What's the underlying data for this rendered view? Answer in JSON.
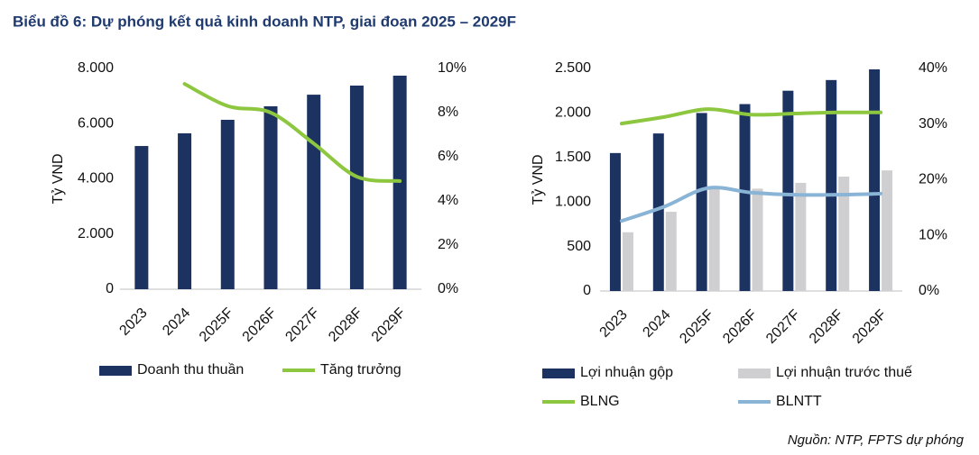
{
  "title": "Biểu đồ 6: Dự phóng kết quả kinh doanh NTP, giai đoạn 2025 – 2029F",
  "source": "Nguồn: NTP, FPTS dự phóng",
  "chart_data": [
    {
      "type": "bar",
      "y_label": "Tỷ VND",
      "categories": [
        "2023",
        "2024",
        "2025F",
        "2026F",
        "2027F",
        "2028F",
        "2029F"
      ],
      "ylim": [
        0,
        8000
      ],
      "yticks": [
        0,
        {
          "value": 2000,
          "label": "2.000"
        },
        {
          "value": 4000,
          "label": "4.000"
        },
        {
          "value": 6000,
          "label": "6.000"
        },
        {
          "value": 8000,
          "label": "8.000"
        }
      ],
      "y2lim": [
        0,
        10
      ],
      "y2ticks": [
        {
          "value": 0,
          "label": "0%"
        },
        {
          "value": 2,
          "label": "2%"
        },
        {
          "value": 4,
          "label": "4%"
        },
        {
          "value": 6,
          "label": "6%"
        },
        {
          "value": 8,
          "label": "8%"
        },
        {
          "value": 10,
          "label": "10%"
        }
      ],
      "series": [
        {
          "name": "Doanh thu thuần",
          "type": "bar",
          "color": "#1c3260",
          "values": [
            5190,
            5650,
            6140,
            6630,
            7050,
            7380,
            7740
          ]
        },
        {
          "name": "Tăng trưởng",
          "type": "line",
          "axis": "y2",
          "color": "#8dc63f",
          "values": [
            null,
            9.3,
            8.3,
            8.0,
            6.6,
            5.1,
            4.9
          ]
        }
      ]
    },
    {
      "type": "bar",
      "y_label": "Tỷ VND",
      "categories": [
        "2023",
        "2024",
        "2025F",
        "2026F",
        "2027F",
        "2028F",
        "2029F"
      ],
      "ylim": [
        0,
        2500
      ],
      "yticks": [
        0,
        500,
        {
          "value": 1000,
          "label": "1.000"
        },
        {
          "value": 1500,
          "label": "1.500"
        },
        {
          "value": 2000,
          "label": "2.000"
        },
        {
          "value": 2500,
          "label": "2.500"
        }
      ],
      "y2lim": [
        0,
        40
      ],
      "y2ticks": [
        {
          "value": 0,
          "label": "0%"
        },
        {
          "value": 10,
          "label": "10%"
        },
        {
          "value": 20,
          "label": "20%"
        },
        {
          "value": 30,
          "label": "30%"
        },
        {
          "value": 40,
          "label": "40%"
        }
      ],
      "series": [
        {
          "name": "Lợi nhuận gộp",
          "type": "bar",
          "color": "#1c3260",
          "values": [
            1550,
            1770,
            2000,
            2100,
            2250,
            2370,
            2490
          ]
        },
        {
          "name": "Lợi nhuận trước thuế",
          "type": "bar",
          "color": "#cfcfd1",
          "values": [
            660,
            890,
            1170,
            1150,
            1215,
            1285,
            1355
          ]
        },
        {
          "name": "BLNG",
          "type": "line",
          "axis": "y2",
          "color": "#8dc63f",
          "values": [
            30.1,
            31.3,
            32.7,
            31.7,
            31.9,
            32.1,
            32.1
          ]
        },
        {
          "name": "BLNTT",
          "type": "line",
          "axis": "y2",
          "color": "#8ab4d6",
          "values": [
            12.6,
            15.2,
            18.5,
            17.7,
            17.3,
            17.3,
            17.5
          ]
        }
      ]
    }
  ]
}
